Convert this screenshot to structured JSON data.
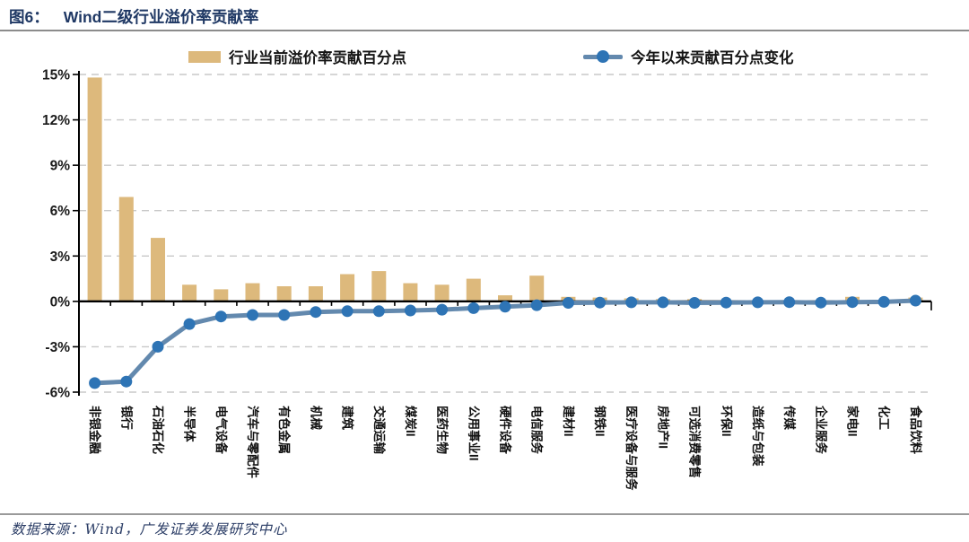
{
  "header": {
    "figure_label": "图6：",
    "title": "Wind二级行业溢价率贡献率"
  },
  "footer": {
    "source": "数据来源：Wind，广发证券发展研究中心"
  },
  "chart_data": {
    "type": "combo",
    "title": "Wind二级行业溢价率贡献率",
    "categories": [
      "非银金融",
      "银行",
      "石油石化",
      "半导体",
      "电气设备",
      "汽车与零配件",
      "有色金属",
      "机械",
      "建筑",
      "交通运输",
      "煤炭II",
      "医药生物",
      "公用事业II",
      "硬件设备",
      "电信服务",
      "建材II",
      "钢铁II",
      "医疗设备与服务",
      "房地产II",
      "可选消费零售",
      "环保II",
      "造纸与包装",
      "传媒",
      "企业服务",
      "家电II",
      "化工",
      "食品饮料"
    ],
    "series": [
      {
        "name": "行业当前溢价率贡献百分点",
        "type": "bar",
        "color": "#DDB97C",
        "values": [
          14.8,
          6.9,
          4.2,
          1.1,
          0.8,
          1.2,
          1.0,
          1.0,
          1.8,
          2.0,
          1.2,
          1.1,
          1.5,
          0.4,
          1.7,
          0.3,
          0.25,
          0.2,
          0.15,
          0.15,
          0.05,
          0.05,
          0.05,
          0.05,
          0.3,
          0.05,
          0.25
        ]
      },
      {
        "name": "今年以来贡献百分点变化",
        "type": "line",
        "color": "#6389AE",
        "marker_color": "#2E74B5",
        "values": [
          -5.4,
          -5.3,
          -3.0,
          -1.5,
          -1.0,
          -0.9,
          -0.9,
          -0.7,
          -0.65,
          -0.65,
          -0.6,
          -0.55,
          -0.45,
          -0.35,
          -0.25,
          -0.1,
          -0.08,
          -0.06,
          -0.06,
          -0.1,
          -0.08,
          -0.06,
          -0.05,
          -0.08,
          -0.05,
          -0.03,
          0.05
        ]
      }
    ],
    "xlabel": "",
    "ylabel": "",
    "yticks": [
      15,
      12,
      9,
      6,
      3,
      0,
      -3,
      -6
    ],
    "ytick_suffix": "%",
    "ylim": [
      -6,
      15
    ],
    "grid": "horizontal-dashed",
    "legend_position": "top",
    "colors": {
      "grid": "#C8C8C8",
      "axis": "#000000",
      "title_text": "#1F3864",
      "footer_text": "#2B3D66"
    }
  }
}
